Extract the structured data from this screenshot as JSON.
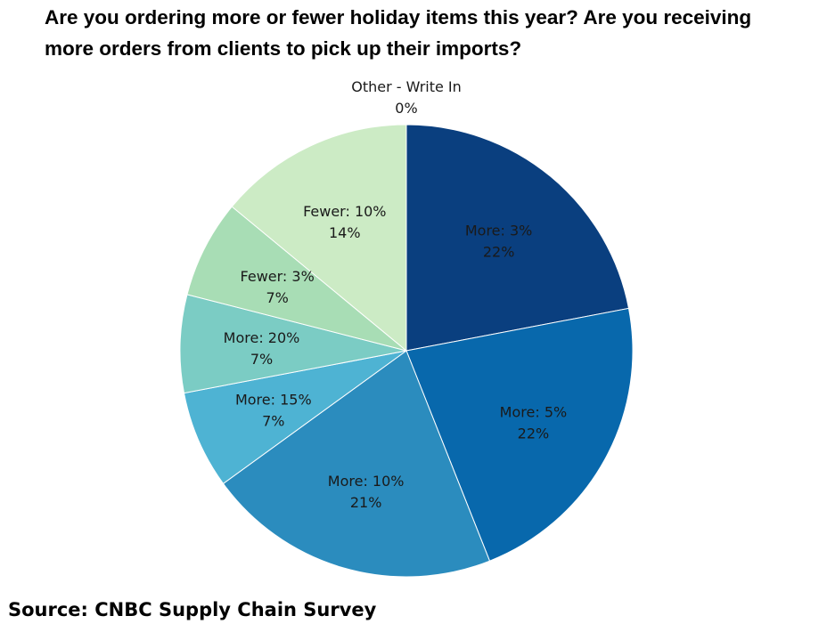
{
  "title_lines": [
    "Are you ordering more or fewer holiday items this year? Are you receiving",
    "more orders from clients to pick up their imports?"
  ],
  "source": "Source: CNBC Supply Chain Survey",
  "chart_data": {
    "type": "pie",
    "title": "Are you ordering more or fewer holiday items this year? Are you receiving more orders from clients to pick up their imports?",
    "slices": [
      {
        "label": "More: 3%",
        "value": 22,
        "display": "22%",
        "color": "#0a3f7f"
      },
      {
        "label": "More: 5%",
        "value": 22,
        "display": "22%",
        "color": "#0868ac"
      },
      {
        "label": "More: 10%",
        "value": 21,
        "display": "21%",
        "color": "#2b8cbe"
      },
      {
        "label": "More: 15%",
        "value": 7,
        "display": "7%",
        "color": "#4eb3d3"
      },
      {
        "label": "More: 20%",
        "value": 7,
        "display": "7%",
        "color": "#7bccc4"
      },
      {
        "label": "Fewer: 3%",
        "value": 7,
        "display": "7%",
        "color": "#a8ddb5"
      },
      {
        "label": "Fewer: 10%",
        "value": 14,
        "display": "14%",
        "color": "#ccebc5"
      },
      {
        "label": "Other - Write In",
        "value": 0,
        "display": "0%",
        "color": "#e0f3db"
      }
    ]
  }
}
